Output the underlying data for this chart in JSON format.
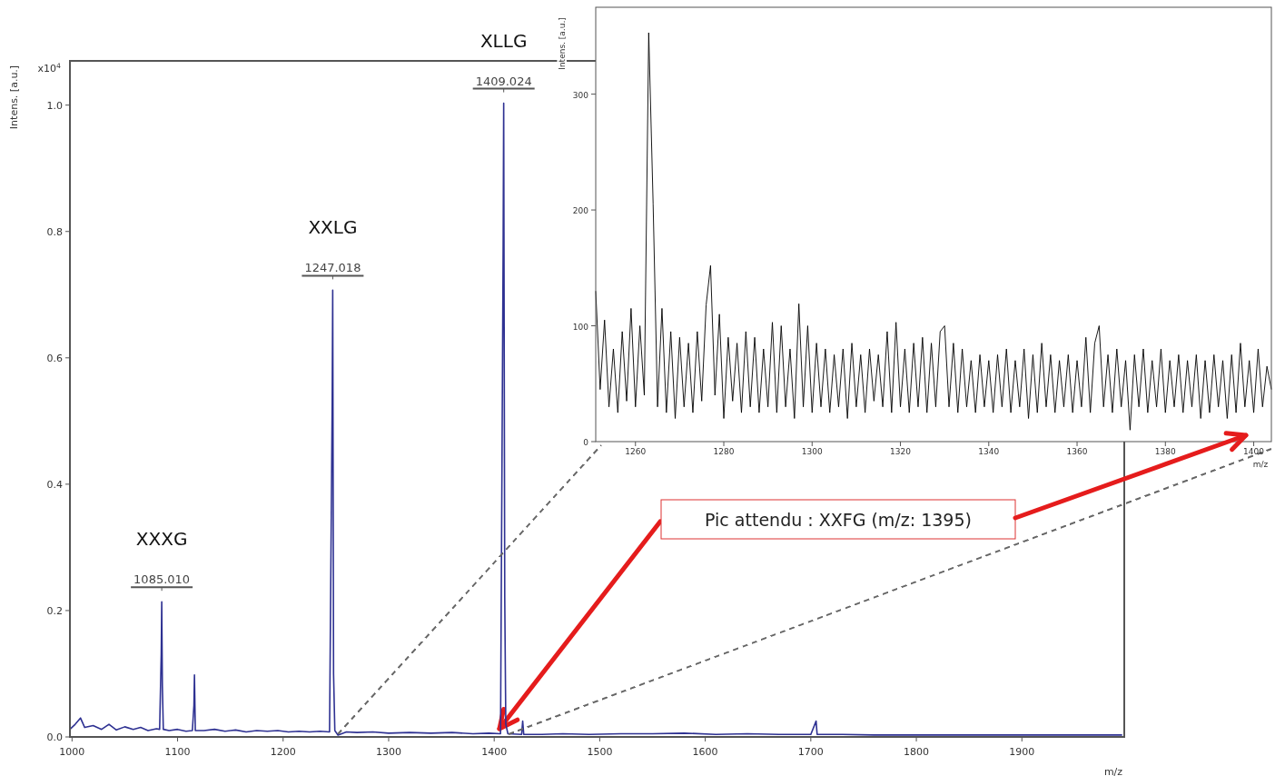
{
  "chart_data": [
    {
      "type": "line",
      "xlabel": "m/z",
      "ylabel": "Intens. [a.u.]",
      "color": "#2e3192",
      "xlim": [
        998,
        1997
      ],
      "ylim": [
        0,
        1.07
      ],
      "xticks": [
        1000,
        1100,
        1200,
        1300,
        1400,
        1500,
        1600,
        1700,
        1800,
        1900
      ],
      "yticks": [
        {
          "value": 0,
          "label": "0.0"
        },
        0.2,
        0.4,
        0.6,
        0.8,
        {
          "value": 1,
          "label": "1.0"
        }
      ],
      "x": [
        998,
        1003,
        1008,
        1012,
        1020,
        1028,
        1035,
        1042,
        1050,
        1058,
        1065,
        1072,
        1080,
        1083,
        1084.5,
        1085,
        1085.6,
        1086.5,
        1092,
        1100,
        1108,
        1114,
        1115.5,
        1116,
        1116.8,
        1125,
        1135,
        1145,
        1155,
        1165,
        1175,
        1185,
        1195,
        1205,
        1215,
        1225,
        1235,
        1244,
        1246.5,
        1247,
        1247.8,
        1249,
        1252,
        1260,
        1270,
        1285,
        1300,
        1320,
        1340,
        1360,
        1380,
        1395,
        1406,
        1408.5,
        1409,
        1410,
        1411,
        1413,
        1426,
        1427,
        1428,
        1445,
        1465,
        1490,
        1520,
        1550,
        1580,
        1610,
        1640,
        1670,
        1700,
        1705,
        1706,
        1730,
        1760,
        1800,
        1850,
        1900,
        1950,
        1995
      ],
      "values": [
        0.012,
        0.02,
        0.03,
        0.015,
        0.018,
        0.012,
        0.02,
        0.011,
        0.016,
        0.012,
        0.015,
        0.01,
        0.013,
        0.012,
        0.13,
        0.214,
        0.08,
        0.012,
        0.01,
        0.012,
        0.009,
        0.01,
        0.05,
        0.098,
        0.01,
        0.01,
        0.012,
        0.009,
        0.011,
        0.008,
        0.01,
        0.009,
        0.01,
        0.008,
        0.009,
        0.008,
        0.009,
        0.008,
        0.53,
        0.707,
        0.1,
        0.01,
        0.003,
        0.008,
        0.007,
        0.008,
        0.006,
        0.007,
        0.006,
        0.007,
        0.005,
        0.006,
        0.005,
        0.78,
        1.003,
        0.22,
        0.02,
        0.005,
        0.004,
        0.025,
        0.004,
        0.004,
        0.005,
        0.004,
        0.005,
        0.005,
        0.006,
        0.004,
        0.005,
        0.004,
        0.004,
        0.025,
        0.004,
        0.004,
        0.003,
        0.003,
        0.003,
        0.003,
        0.003,
        0.003
      ],
      "annotations": [
        "x10$^{4}$",
        "Pic attendu : XXFG (m/z: 1395)",
        {
          "text": "XXXG",
          "x": 1085.01,
          "y": 0.214
        },
        {
          "text": "1085.010",
          "x": 1085.01,
          "y": 0.214
        },
        {
          "text": "XXLG",
          "x": 1247.018,
          "y": 0.707
        },
        {
          "text": "1247.018",
          "x": 1247.018,
          "y": 0.707
        },
        {
          "text": "XLLG",
          "x": 1409.024,
          "y": 1.003
        },
        {
          "text": "1409.024",
          "x": 1409.024,
          "y": 1.003
        }
      ]
    },
    {
      "type": "line",
      "xlabel": "m/z",
      "ylabel": "Intens. [a.u.]",
      "color": "#000000",
      "xlim": [
        1251,
        1404
      ],
      "ylim": [
        0,
        375
      ],
      "xticks": [
        1260,
        1280,
        1300,
        1320,
        1340,
        1360,
        1380,
        1400
      ],
      "yticks": [
        0,
        100,
        200,
        300
      ],
      "x": [
        1251,
        1252,
        1253,
        1254,
        1255,
        1256,
        1257,
        1258,
        1259,
        1260,
        1261,
        1262,
        1263,
        1264,
        1265,
        1266,
        1267,
        1268,
        1269,
        1270,
        1271,
        1272,
        1273,
        1274,
        1275,
        1276,
        1277,
        1278,
        1279,
        1280,
        1281,
        1282,
        1283,
        1284,
        1285,
        1286,
        1287,
        1288,
        1289,
        1290,
        1291,
        1292,
        1293,
        1294,
        1295,
        1296,
        1297,
        1298,
        1299,
        1300,
        1301,
        1302,
        1303,
        1304,
        1305,
        1306,
        1307,
        1308,
        1309,
        1310,
        1311,
        1312,
        1313,
        1314,
        1315,
        1316,
        1317,
        1318,
        1319,
        1320,
        1321,
        1322,
        1323,
        1324,
        1325,
        1326,
        1327,
        1328,
        1329,
        1330,
        1331,
        1332,
        1333,
        1334,
        1335,
        1336,
        1337,
        1338,
        1339,
        1340,
        1341,
        1342,
        1343,
        1344,
        1345,
        1346,
        1347,
        1348,
        1349,
        1350,
        1351,
        1352,
        1353,
        1354,
        1355,
        1356,
        1357,
        1358,
        1359,
        1360,
        1361,
        1362,
        1363,
        1364,
        1365,
        1366,
        1367,
        1368,
        1369,
        1370,
        1371,
        1372,
        1373,
        1374,
        1375,
        1376,
        1377,
        1378,
        1379,
        1380,
        1381,
        1382,
        1383,
        1384,
        1385,
        1386,
        1387,
        1388,
        1389,
        1390,
        1391,
        1392,
        1393,
        1394,
        1395,
        1396,
        1397,
        1398,
        1399,
        1400,
        1401,
        1402,
        1403,
        1404
      ],
      "values": [
        130,
        45,
        105,
        30,
        80,
        25,
        95,
        35,
        115,
        30,
        100,
        40,
        353,
        205,
        30,
        115,
        25,
        95,
        20,
        90,
        30,
        85,
        25,
        95,
        35,
        118,
        152,
        40,
        110,
        20,
        90,
        35,
        85,
        25,
        95,
        30,
        90,
        25,
        80,
        30,
        103,
        25,
        100,
        30,
        80,
        20,
        119,
        30,
        100,
        25,
        85,
        30,
        80,
        25,
        75,
        30,
        80,
        20,
        85,
        30,
        75,
        25,
        80,
        35,
        75,
        30,
        95,
        25,
        103,
        30,
        80,
        25,
        85,
        30,
        90,
        25,
        85,
        30,
        95,
        100,
        30,
        85,
        25,
        80,
        30,
        70,
        25,
        75,
        30,
        70,
        25,
        75,
        30,
        80,
        25,
        70,
        30,
        80,
        20,
        75,
        25,
        85,
        30,
        75,
        25,
        70,
        30,
        75,
        25,
        70,
        30,
        90,
        25,
        85,
        100,
        30,
        75,
        25,
        80,
        30,
        70,
        10,
        75,
        30,
        80,
        25,
        70,
        30,
        80,
        25,
        70,
        30,
        75,
        25,
        70,
        30,
        75,
        20,
        70,
        25,
        75,
        30,
        70,
        20,
        75,
        25,
        85,
        30,
        70,
        25,
        80,
        30,
        65,
        45
      ]
    }
  ]
}
